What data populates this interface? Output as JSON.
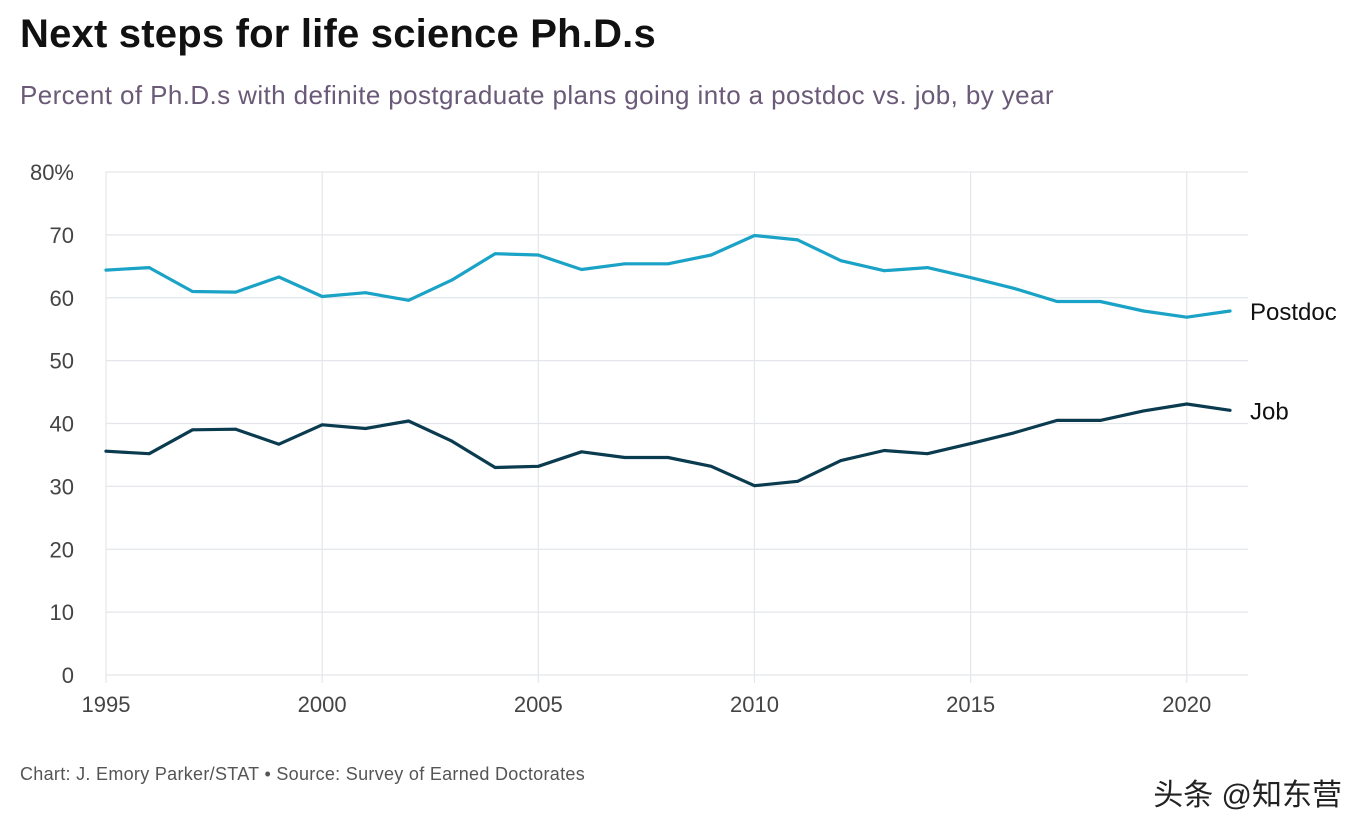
{
  "header": {
    "title": "Next steps for life science Ph.D.s",
    "subtitle": "Percent of Ph.D.s with definite postgraduate plans going into a postdoc vs. job, by year"
  },
  "footer": {
    "source": "Chart: J. Emory Parker/STAT • Source: Survey of Earned Doctorates",
    "watermark": "头条 @知东营"
  },
  "colors": {
    "postdoc": "#1aa3c6",
    "job": "#0a3b4f",
    "grid": "#e3e6ea",
    "tick": "#444444"
  },
  "chart_data": {
    "type": "line",
    "title": "Next steps for life science Ph.D.s",
    "subtitle": "Percent of Ph.D.s with definite postgraduate plans going into a postdoc vs. job, by year",
    "xlabel": "",
    "ylabel": "",
    "xlim": [
      1995,
      2021
    ],
    "ylim": [
      0,
      80
    ],
    "x_ticks": [
      1995,
      2000,
      2005,
      2010,
      2015,
      2020
    ],
    "y_ticks": [
      0,
      10,
      20,
      30,
      40,
      50,
      60,
      70,
      80
    ],
    "y_tick_labels": [
      "0",
      "10",
      "20",
      "30",
      "40",
      "50",
      "60",
      "70",
      "80%"
    ],
    "grid": true,
    "x": [
      1995,
      1996,
      1997,
      1998,
      1999,
      2000,
      2001,
      2002,
      2003,
      2004,
      2005,
      2006,
      2007,
      2008,
      2009,
      2010,
      2011,
      2012,
      2013,
      2014,
      2015,
      2016,
      2017,
      2018,
      2019,
      2020,
      2021
    ],
    "series": [
      {
        "name": "Postdoc",
        "values": [
          64.4,
          64.8,
          61.0,
          60.9,
          63.3,
          60.2,
          60.8,
          59.6,
          62.8,
          67.0,
          66.8,
          64.5,
          65.4,
          65.4,
          66.8,
          69.9,
          69.2,
          65.9,
          64.3,
          64.8,
          63.2,
          61.5,
          59.4,
          59.4,
          57.9,
          56.9,
          57.9
        ]
      },
      {
        "name": "Job",
        "values": [
          35.6,
          35.2,
          39.0,
          39.1,
          36.7,
          39.8,
          39.2,
          40.4,
          37.2,
          33.0,
          33.2,
          35.5,
          34.6,
          34.6,
          33.2,
          30.1,
          30.8,
          34.1,
          35.7,
          35.2,
          36.8,
          38.5,
          40.5,
          40.5,
          42.0,
          43.1,
          42.1
        ]
      }
    ]
  }
}
